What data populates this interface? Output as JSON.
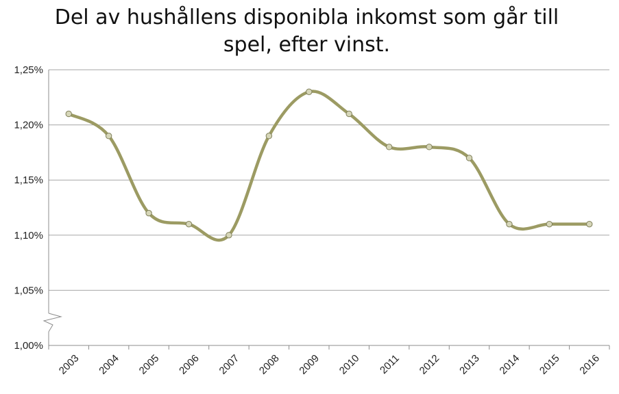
{
  "chart_data": {
    "type": "line",
    "title": "Del av hushållens disponibla inkomst som går till spel, efter vinst.",
    "categories": [
      "2003",
      "2004",
      "2005",
      "2006",
      "2007",
      "2008",
      "2009",
      "2010",
      "2011",
      "2012",
      "2013",
      "2014",
      "2015",
      "2016"
    ],
    "series": [
      {
        "values": [
          1.21,
          1.19,
          1.12,
          1.11,
          1.1,
          1.19,
          1.23,
          1.21,
          1.18,
          1.18,
          1.17,
          1.11,
          1.11,
          1.11
        ]
      }
    ],
    "ylim": [
      1.0,
      1.25
    ],
    "yticks": [
      "1,00%",
      "1,05%",
      "1,10%",
      "1,15%",
      "1,20%",
      "1,25%"
    ],
    "y_axis_break": true,
    "grid": true,
    "smoothed": true,
    "line_color": "#9c9b63",
    "marker_color": "#d6d6b8"
  }
}
